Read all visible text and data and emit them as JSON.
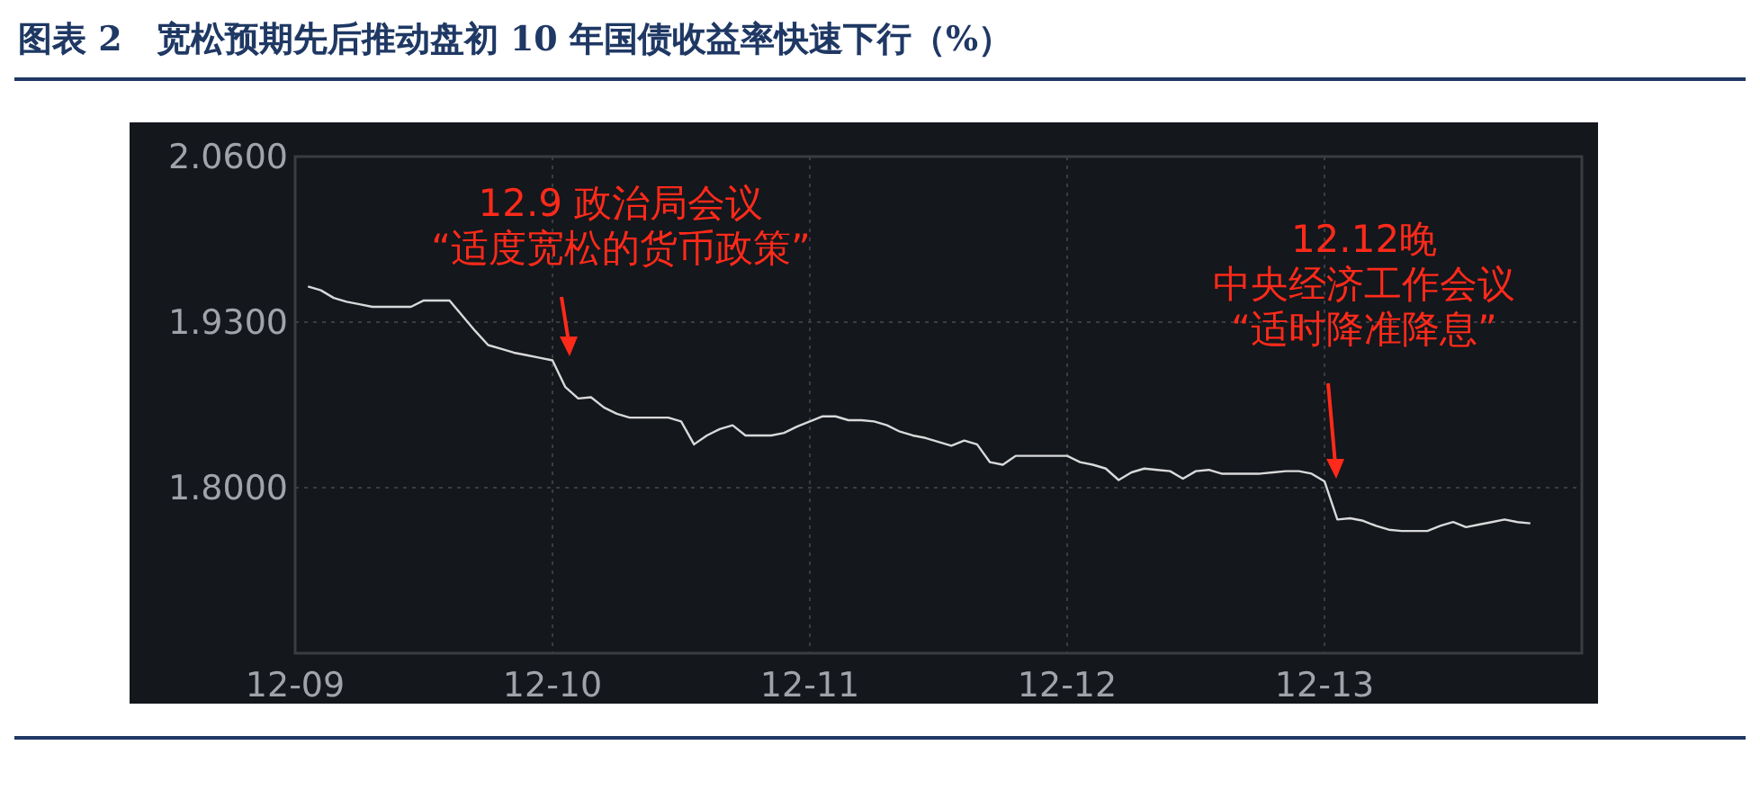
{
  "chart_data": {
    "type": "line",
    "title": "图表 2　宽松预期先后推动盘初 10 年国债收益率快速下行（%）",
    "categories": [
      "12-09",
      null,
      null,
      null,
      null,
      null,
      null,
      null,
      null,
      null,
      null,
      null,
      null,
      null,
      null,
      null,
      null,
      null,
      null,
      null,
      "12-10",
      null,
      null,
      null,
      null,
      null,
      null,
      null,
      null,
      null,
      null,
      null,
      null,
      null,
      null,
      null,
      null,
      null,
      null,
      null,
      "12-11",
      null,
      null,
      null,
      null,
      null,
      null,
      null,
      null,
      null,
      null,
      null,
      null,
      null,
      null,
      null,
      null,
      null,
      null,
      null,
      "12-12",
      null,
      null,
      null,
      null,
      null,
      null,
      null,
      null,
      null,
      null,
      null,
      null,
      null,
      null,
      null,
      null,
      null,
      null,
      null,
      "12-13",
      null,
      null,
      null,
      null,
      null,
      null,
      null,
      null,
      null,
      null,
      null,
      null,
      null,
      null,
      null,
      null,
      null,
      null,
      null
    ],
    "ylim": [
      1.67,
      2.06
    ],
    "yticks": [
      {
        "value": 1.8,
        "label": "1.8000"
      },
      {
        "value": 1.93,
        "label": "1.9300"
      },
      {
        "value": 2.06,
        "label": "2.0600"
      }
    ],
    "grid": true,
    "marker": "none",
    "line_style": "solid",
    "series": [
      {
        "color": "#d9d9d9",
        "values": [
          null,
          1.958,
          1.955,
          1.949,
          1.946,
          1.944,
          1.942,
          1.942,
          1.942,
          1.942,
          1.947,
          1.947,
          1.947,
          1.935,
          1.923,
          1.912,
          1.909,
          1.906,
          1.904,
          1.902,
          1.9,
          1.879,
          1.87,
          1.871,
          1.863,
          1.858,
          1.855,
          1.855,
          1.855,
          1.855,
          1.852,
          1.834,
          1.841,
          1.846,
          1.849,
          1.841,
          1.841,
          1.841,
          1.843,
          1.848,
          1.852,
          1.856,
          1.856,
          1.853,
          1.853,
          1.852,
          1.849,
          1.844,
          1.841,
          1.839,
          1.836,
          1.833,
          1.837,
          1.834,
          1.82,
          1.818,
          1.825,
          1.825,
          1.825,
          1.825,
          1.825,
          1.82,
          1.818,
          1.815,
          1.806,
          1.812,
          1.815,
          1.814,
          1.813,
          1.807,
          1.813,
          1.814,
          1.811,
          1.811,
          1.811,
          1.811,
          1.812,
          1.813,
          1.813,
          1.811,
          1.805,
          1.775,
          1.776,
          1.774,
          1.77,
          1.767,
          1.766,
          1.766,
          1.766,
          1.77,
          1.773,
          1.769,
          1.771,
          1.773,
          1.775,
          1.773,
          1.772,
          null,
          null,
          null
        ]
      }
    ],
    "annotations": [
      "12.9 政治局会议",
      "“适度宽松的货币政策”",
      "12.12晚",
      "中央经济工作会议",
      "“适时降准降息”"
    ]
  }
}
